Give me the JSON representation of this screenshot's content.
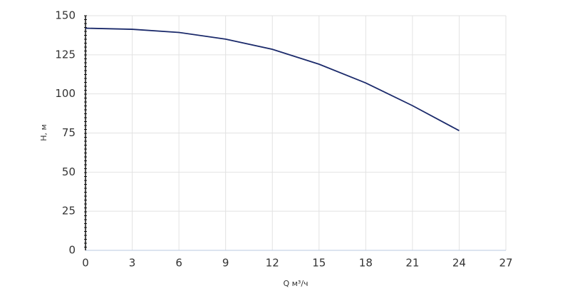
{
  "chart_data": {
    "type": "line",
    "x_label": "Q м³/ч",
    "y_label": "H, м",
    "x": [
      0,
      3,
      6,
      9,
      12,
      15,
      18,
      21,
      24
    ],
    "series": [
      {
        "color": "#1b2a6b",
        "values": [
          142,
          141.3,
          139.3,
          135,
          128.5,
          119,
          107,
          92.5,
          76.5
        ]
      }
    ],
    "xlim": [
      0,
      27
    ],
    "xticks": [
      0,
      3,
      6,
      9,
      12,
      15,
      18,
      21,
      24,
      27
    ],
    "ylim": [
      0,
      150
    ],
    "yticks": [
      0,
      25,
      50,
      75,
      100,
      125,
      150
    ],
    "grid": true
  }
}
